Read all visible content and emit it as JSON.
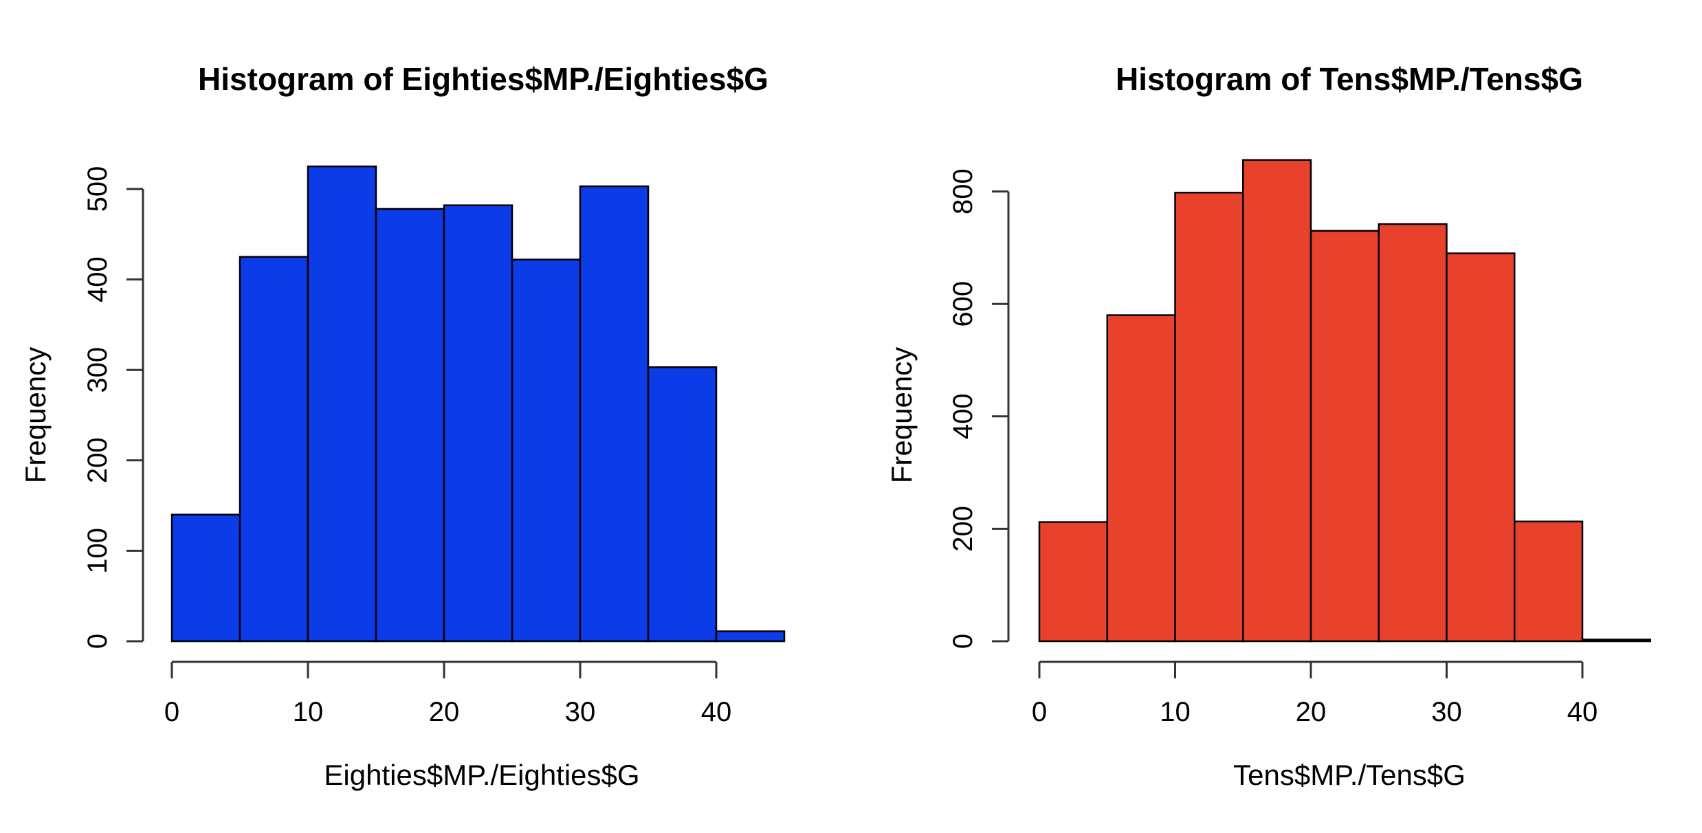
{
  "page": {
    "background_color": "#ffffff",
    "description": "Two R base-graphics histograms side by side"
  },
  "chart_data": [
    {
      "type": "bar",
      "subtype": "histogram",
      "title": "Histogram of Eighties$MP./Eighties$G",
      "xlabel": "Eighties$MP./Eighties$G",
      "ylabel": "Frequency",
      "bar_color": "#0b3ce8",
      "bar_edge_color": "#000000",
      "bin_start": 0,
      "bin_width": 5,
      "bin_edges": [
        0,
        5,
        10,
        15,
        20,
        25,
        30,
        35,
        40,
        45
      ],
      "values": [
        140,
        425,
        525,
        478,
        482,
        422,
        503,
        303,
        11
      ],
      "x_ticks": [
        0,
        10,
        20,
        30,
        40
      ],
      "y_ticks": [
        0,
        100,
        200,
        300,
        400,
        500
      ],
      "xlim": [
        0,
        45
      ],
      "ylim": [
        0,
        500
      ],
      "grid": false,
      "legend_position": "none"
    },
    {
      "type": "bar",
      "subtype": "histogram",
      "title": "Histogram of Tens$MP./Tens$G",
      "xlabel": "Tens$MP./Tens$G",
      "ylabel": "Frequency",
      "bar_color": "#e8412c",
      "bar_edge_color": "#000000",
      "bin_start": 0,
      "bin_width": 5,
      "bin_edges": [
        0,
        5,
        10,
        15,
        20,
        25,
        30,
        35,
        40,
        45
      ],
      "values": [
        212,
        580,
        798,
        856,
        730,
        742,
        690,
        213,
        3
      ],
      "x_ticks": [
        0,
        10,
        20,
        30,
        40
      ],
      "y_ticks": [
        0,
        200,
        400,
        600,
        800
      ],
      "xlim": [
        0,
        45
      ],
      "ylim": [
        0,
        800
      ],
      "grid": false,
      "legend_position": "none"
    }
  ]
}
